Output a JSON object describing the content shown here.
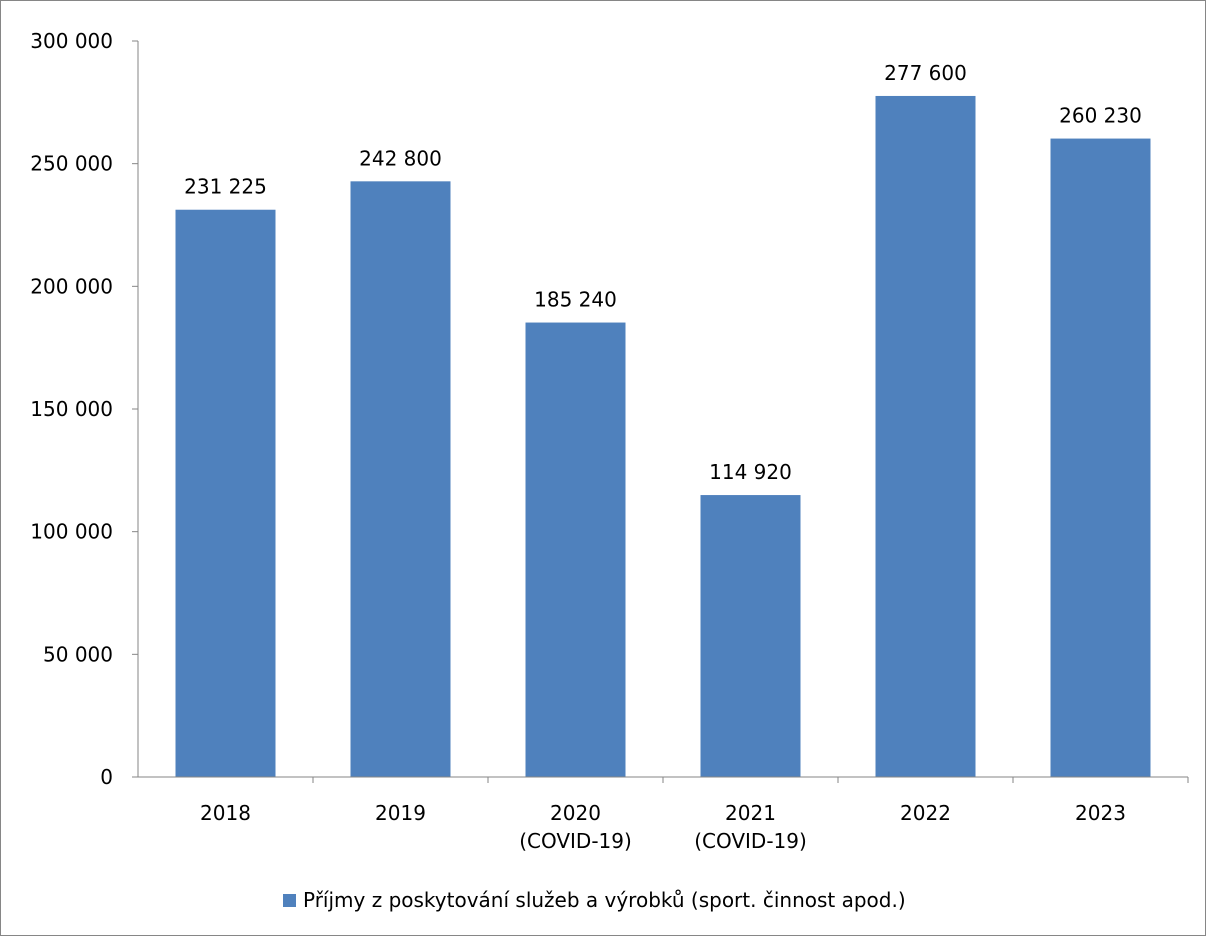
{
  "chart_data": {
    "type": "bar",
    "categories": [
      [
        "2018"
      ],
      [
        "2019"
      ],
      [
        "2020",
        "(COVID-19)"
      ],
      [
        "2021",
        "(COVID-19)"
      ],
      [
        "2022"
      ],
      [
        "2023"
      ]
    ],
    "series": [
      {
        "name": "Příjmy z poskytování služeb a výrobků (sport. činnost apod.)",
        "values": [
          231225,
          242800,
          185240,
          114920,
          277600,
          260230
        ],
        "value_labels": [
          "231 225",
          "242 800",
          "185 240",
          "114 920",
          "277 600",
          "260 230"
        ],
        "color": "#4f81bd"
      }
    ],
    "ylim": [
      0,
      300000
    ],
    "yticks": [
      0,
      50000,
      100000,
      150000,
      200000,
      250000,
      300000
    ],
    "ytick_labels": [
      "0",
      "50 000",
      "100 000",
      "150 000",
      "200 000",
      "250 000",
      "300 000"
    ],
    "grid": false,
    "legend_position": "bottom",
    "title": "",
    "xlabel": "",
    "ylabel": ""
  },
  "colors": {
    "bar": "#4f81bd",
    "axis": "#868686",
    "text": "#000000"
  }
}
